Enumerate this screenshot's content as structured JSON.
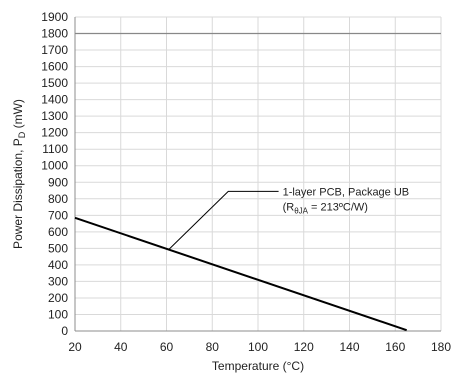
{
  "chart_data": {
    "type": "line",
    "title": "",
    "xlabel": "Temperature (°C)",
    "ylabel": {
      "main": "Power Dissipation, P",
      "subscript": "D",
      "unit": " (mW)"
    },
    "xlim": [
      20,
      180
    ],
    "ylim": [
      0,
      1900
    ],
    "x_ticks": [
      20,
      40,
      60,
      80,
      100,
      120,
      140,
      160,
      180
    ],
    "y_ticks": [
      0,
      100,
      200,
      300,
      400,
      500,
      600,
      700,
      800,
      900,
      1000,
      1100,
      1200,
      1300,
      1400,
      1500,
      1600,
      1700,
      1800,
      1900
    ],
    "grid": true,
    "series": [
      {
        "x": [
          20,
          165
        ],
        "y": [
          685,
          5
        ],
        "color": "#000000"
      }
    ],
    "reference_line": {
      "y": 1800,
      "color": "#888888"
    },
    "annotation": {
      "line1": "1-layer PCB, Package UB",
      "line2_prefix": "(R",
      "line2_sub": "θJA",
      "line2_suffix": " = 213ºC/W)",
      "points_to": {
        "x": 61,
        "y": 493
      }
    }
  }
}
